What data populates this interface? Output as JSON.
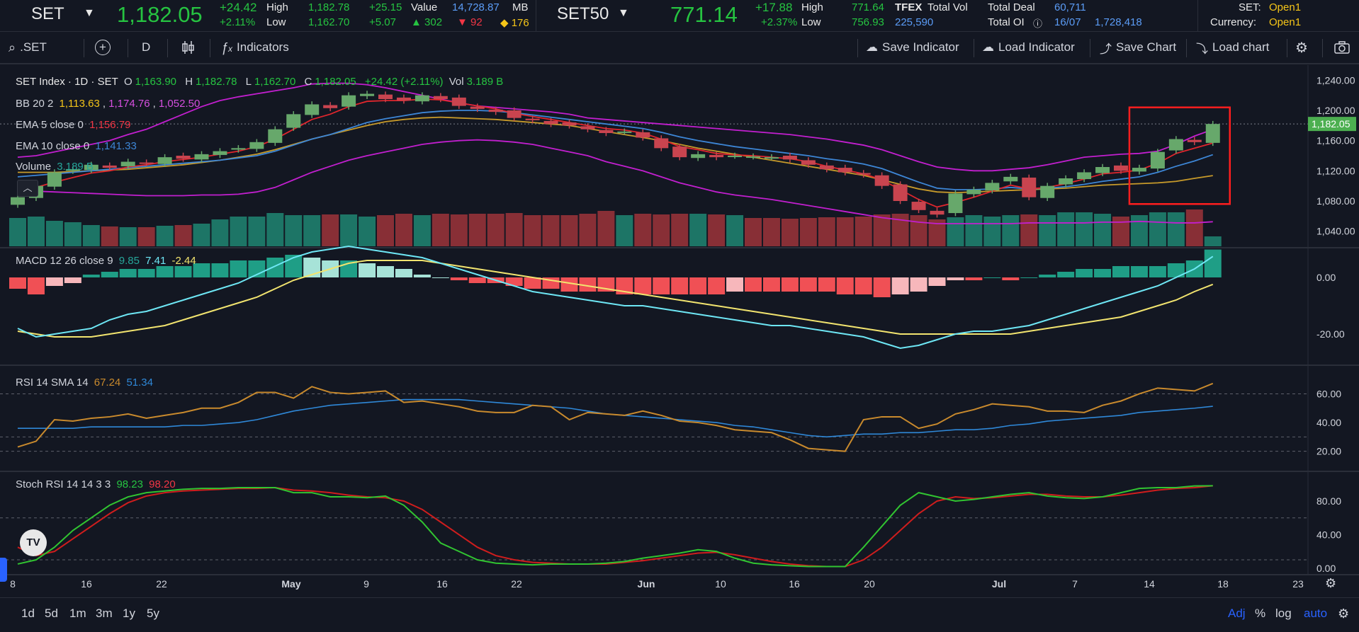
{
  "quote_bar": {
    "set": {
      "symbol": "SET",
      "price": "1,182.05",
      "change": "+24.42",
      "change_pct": "+2.11%",
      "high_label": "High",
      "high": "1,182.78",
      "low_label": "Low",
      "low": "1,162.70",
      "high_diff": "+25.15",
      "low_diff": "+5.07",
      "value_label": "Value",
      "value": "14,728.87",
      "value_unit": "MB",
      "adv": "302",
      "dec": "92",
      "unch": "176"
    },
    "set50": {
      "symbol": "SET50",
      "price": "771.14",
      "change": "+17.88",
      "change_pct": "+2.37%",
      "high_label": "High",
      "high": "771.64",
      "low_label": "Low",
      "low": "756.93",
      "tfex_label": "TFEX",
      "total_vol_label": "Total Vol",
      "total_vol": "225,590",
      "total_deal_label": "Total Deal",
      "total_deal": "60,711",
      "total_oi_label": "Total OI",
      "oi_date": "16/07",
      "total_oi": "1,728,418"
    },
    "market": {
      "set_label": "SET:",
      "set_status": "Open1",
      "currency_label": "Currency:",
      "currency_status": "Open1"
    }
  },
  "toolbar": {
    "search_value": ".SET",
    "interval": "D",
    "indicators_label": "Indicators",
    "save_indicator_label": "Save Indicator",
    "load_indicator_label": "Load Indicator",
    "save_chart_label": "Save Chart",
    "load_chart_label": "Load chart"
  },
  "legend": {
    "main": {
      "title": "SET Index · 1D · SET",
      "o_label": "O",
      "o": "1,163.90",
      "h_label": "H",
      "h": "1,182.78",
      "l_label": "L",
      "l": "1,162.70",
      "c_label": "C",
      "c": "1,182.05",
      "change": "+24.42 (+2.11%)",
      "vol_label": "Vol",
      "vol": "3.189 B"
    },
    "bb": {
      "label": "BB 20 2",
      "basis": "1,113.63",
      "upper": "1,174.76",
      "lower": "1,052.50"
    },
    "ema5": {
      "label": "EMA 5 close 0",
      "value": "1,156.79"
    },
    "ema10": {
      "label": "EMA 10 close 0",
      "value": "1,141.33"
    },
    "volume": {
      "label": "Volume",
      "value": "3.189 B"
    },
    "macd": {
      "label": "MACD 12 26 close 9",
      "hist": "9.85",
      "macd": "7.41",
      "signal": "-2.44"
    },
    "rsi": {
      "label": "RSI 14 SMA 14",
      "rsi": "67.24",
      "sma": "51.34"
    },
    "stoch": {
      "label": "Stoch RSI 14 14 3 3",
      "k": "98.23",
      "d": "98.20"
    }
  },
  "price_axis": {
    "ticks": [
      "1,240.00",
      "1,200.00",
      "1,160.00",
      "1,120.00",
      "1,080.00",
      "1,040.00"
    ],
    "last_price": "1,182.05"
  },
  "macd_axis": {
    "ticks": [
      "0.00",
      "-20.00"
    ]
  },
  "rsi_axis": {
    "ticks": [
      "60.00",
      "40.00",
      "20.00"
    ]
  },
  "stoch_axis": {
    "ticks": [
      "80.00",
      "40.00",
      "0.00"
    ]
  },
  "time_axis": {
    "ticks": [
      "8",
      "16",
      "22",
      "May",
      "9",
      "16",
      "22",
      "Jun",
      "10",
      "16",
      "20",
      "Jul",
      "7",
      "14",
      "18",
      "23"
    ]
  },
  "bottom_bar": {
    "timeframes": [
      "1d",
      "5d",
      "1m",
      "3m",
      "1y",
      "5y"
    ],
    "adj": "Adj",
    "pct": "%",
    "log": "log",
    "auto": "auto"
  },
  "colors": {
    "up": "#26a69a",
    "down": "#ef5350",
    "green": "#26c441",
    "bb": "#c21fcf",
    "ema5": "#e0262d",
    "ema10": "#3d86d6",
    "basis": "#c79a2a",
    "macd": "#6ee7f5",
    "signal": "#f2e46f",
    "rsi": "#c98a2d",
    "rsi_sma": "#2f88d8",
    "stoch_k": "#31c431",
    "stoch_d": "#cf1d1d",
    "highlight": "#ff1e1e"
  },
  "chart_data": {
    "type": "candlestick",
    "n_bars": 66,
    "price_range": [
      1020,
      1260
    ],
    "last_close": 1182.05,
    "highlight_box": {
      "from_bar": 61,
      "to_bar": 65,
      "price_low": 1076,
      "price_high": 1204
    },
    "closes": [
      1085,
      1100,
      1118,
      1122,
      1128,
      1124,
      1132,
      1130,
      1138,
      1136,
      1142,
      1146,
      1150,
      1158,
      1175,
      1195,
      1208,
      1203,
      1220,
      1222,
      1215,
      1213,
      1220,
      1215,
      1206,
      1202,
      1198,
      1190,
      1187,
      1182,
      1180,
      1175,
      1170,
      1172,
      1164,
      1150,
      1138,
      1142,
      1138,
      1140,
      1139,
      1138,
      1135,
      1128,
      1122,
      1118,
      1115,
      1100,
      1080,
      1068,
      1062,
      1090,
      1095,
      1104,
      1112,
      1085,
      1100,
      1110,
      1118,
      1125,
      1120,
      1124,
      1145,
      1162,
      1158,
      1182.05
    ],
    "ema5": [
      1092,
      1098,
      1105,
      1111,
      1117,
      1120,
      1125,
      1128,
      1132,
      1135,
      1138,
      1142,
      1146,
      1152,
      1162,
      1175,
      1188,
      1195,
      1205,
      1212,
      1213,
      1213,
      1215,
      1214,
      1210,
      1206,
      1202,
      1196,
      1192,
      1188,
      1184,
      1180,
      1176,
      1174,
      1170,
      1162,
      1152,
      1148,
      1143,
      1141,
      1140,
      1138,
      1136,
      1132,
      1126,
      1121,
      1116,
      1108,
      1095,
      1082,
      1072,
      1078,
      1085,
      1093,
      1101,
      1096,
      1098,
      1103,
      1109,
      1116,
      1118,
      1121,
      1130,
      1143,
      1150,
      1156.79
    ],
    "ema10": [
      1112,
      1114,
      1116,
      1118,
      1120,
      1122,
      1124,
      1126,
      1128,
      1130,
      1132,
      1134,
      1137,
      1140,
      1146,
      1154,
      1162,
      1168,
      1176,
      1184,
      1189,
      1193,
      1197,
      1199,
      1200,
      1200,
      1199,
      1197,
      1194,
      1191,
      1188,
      1185,
      1182,
      1179,
      1176,
      1171,
      1165,
      1160,
      1156,
      1152,
      1149,
      1146,
      1143,
      1140,
      1136,
      1133,
      1129,
      1123,
      1114,
      1105,
      1097,
      1095,
      1095,
      1096,
      1098,
      1096,
      1097,
      1099,
      1102,
      1106,
      1109,
      1112,
      1118,
      1126,
      1133,
      1141.33
    ],
    "bb_upper": [
      1138,
      1140,
      1145,
      1150,
      1155,
      1160,
      1168,
      1175,
      1185,
      1195,
      1205,
      1213,
      1218,
      1222,
      1226,
      1230,
      1235,
      1236,
      1236,
      1234,
      1230,
      1225,
      1220,
      1215,
      1210,
      1206,
      1204,
      1202,
      1200,
      1198,
      1195,
      1190,
      1188,
      1186,
      1184,
      1182,
      1180,
      1178,
      1176,
      1174,
      1172,
      1170,
      1168,
      1165,
      1162,
      1158,
      1154,
      1148,
      1140,
      1132,
      1125,
      1122,
      1120,
      1120,
      1122,
      1124,
      1128,
      1133,
      1138,
      1140,
      1142,
      1143,
      1146,
      1155,
      1166,
      1174.76
    ],
    "bb_lower": [
      1095,
      1093,
      1092,
      1091,
      1090,
      1089,
      1088,
      1087,
      1087,
      1087,
      1088,
      1088,
      1089,
      1092,
      1098,
      1108,
      1118,
      1126,
      1134,
      1140,
      1145,
      1150,
      1155,
      1158,
      1160,
      1161,
      1160,
      1158,
      1155,
      1150,
      1145,
      1140,
      1132,
      1126,
      1120,
      1112,
      1104,
      1098,
      1092,
      1088,
      1085,
      1082,
      1078,
      1074,
      1070,
      1066,
      1062,
      1058,
      1055,
      1052,
      1050,
      1050,
      1050,
      1050,
      1050,
      1051,
      1051,
      1051,
      1051,
      1052,
      1052,
      1053,
      1052,
      1051,
      1051,
      1052.5
    ],
    "bb_basis": [
      1118,
      1118,
      1118,
      1119,
      1120,
      1121,
      1122,
      1124,
      1126,
      1128,
      1131,
      1134,
      1138,
      1142,
      1148,
      1155,
      1162,
      1168,
      1174,
      1180,
      1185,
      1188,
      1190,
      1191,
      1190,
      1189,
      1188,
      1186,
      1184,
      1182,
      1180,
      1176,
      1172,
      1168,
      1164,
      1160,
      1155,
      1150,
      1146,
      1142,
      1138,
      1134,
      1130,
      1126,
      1122,
      1118,
      1114,
      1108,
      1102,
      1096,
      1092,
      1091,
      1092,
      1093,
      1094,
      1095,
      1096,
      1097,
      1099,
      1101,
      1102,
      1103,
      1104,
      1106,
      1110,
      1113.63
    ],
    "volume": [
      40,
      42,
      36,
      34,
      30,
      28,
      27,
      27,
      29,
      30,
      32,
      38,
      42,
      42,
      47,
      44,
      44,
      45,
      45,
      42,
      44,
      46,
      44,
      46,
      45,
      46,
      46,
      47,
      44,
      44,
      44,
      46,
      50,
      44,
      46,
      45,
      46,
      46,
      45,
      44,
      40,
      40,
      39,
      40,
      41,
      41,
      42,
      45,
      46,
      44,
      38,
      41,
      44,
      42,
      44,
      45,
      44,
      48,
      48,
      46,
      42,
      44,
      48,
      48,
      52,
      14
    ],
    "macd_hist": [
      -4,
      -6,
      -3,
      -2,
      1,
      2,
      3,
      3,
      4,
      4,
      5,
      5,
      6,
      6,
      7,
      8,
      7,
      6,
      6,
      5,
      4,
      3,
      1,
      0,
      -1,
      -2,
      -2,
      -3,
      -4,
      -4,
      -5,
      -5,
      -5,
      -6,
      -6,
      -6,
      -6,
      -6,
      -6,
      -5,
      -5,
      -5,
      -5,
      -5,
      -5,
      -6,
      -6,
      -7,
      -6,
      -5,
      -3,
      -1,
      -1,
      0,
      -1,
      0,
      1,
      2,
      3,
      3,
      4,
      4,
      4,
      5,
      6,
      9.85
    ],
    "macd": [
      -18,
      -21,
      -20,
      -19,
      -18,
      -15,
      -13,
      -12,
      -10,
      -8,
      -6,
      -4,
      -2,
      1,
      4,
      7,
      9,
      10,
      11,
      10,
      9,
      8,
      7,
      5,
      3,
      1,
      -1,
      -3,
      -5,
      -6,
      -7,
      -8,
      -9,
      -10,
      -10,
      -11,
      -12,
      -13,
      -14,
      -15,
      -16,
      -17,
      -17,
      -18,
      -19,
      -20,
      -21,
      -23,
      -25,
      -24,
      -22,
      -20,
      -19,
      -19,
      -18,
      -17,
      -15,
      -13,
      -11,
      -9,
      -7,
      -5,
      -3,
      0,
      3,
      7.41
    ],
    "macd_signal": [
      -19,
      -20,
      -21,
      -21,
      -21,
      -20,
      -19,
      -18,
      -17,
      -15,
      -13,
      -11,
      -9,
      -7,
      -4,
      -1,
      1,
      3,
      5,
      6,
      6,
      6,
      6,
      5,
      4,
      3,
      2,
      1,
      0,
      -1,
      -2,
      -3,
      -4,
      -5,
      -6,
      -7,
      -8,
      -9,
      -10,
      -11,
      -12,
      -13,
      -14,
      -15,
      -16,
      -17,
      -18,
      -19,
      -20,
      -20,
      -20,
      -20,
      -20,
      -20,
      -20,
      -19,
      -18,
      -17,
      -16,
      -15,
      -14,
      -12,
      -10,
      -8,
      -5,
      -2.44
    ],
    "rsi": [
      23,
      27,
      42,
      41,
      43,
      44,
      46,
      43,
      45,
      47,
      50,
      50,
      54,
      61,
      61,
      57,
      65,
      61,
      60,
      61,
      62,
      54,
      55,
      53,
      51,
      48,
      47,
      47,
      52,
      51,
      42,
      47,
      46,
      45,
      48,
      45,
      41,
      40,
      38,
      35,
      34,
      33,
      28,
      22,
      21,
      20,
      42,
      44,
      44,
      36,
      39,
      46,
      49,
      53,
      52,
      51,
      48,
      48,
      47,
      52,
      55,
      60,
      64,
      63,
      62,
      67.24
    ],
    "rsi_sma": [
      36,
      36,
      36,
      36,
      37,
      37,
      37,
      37,
      37,
      38,
      38,
      39,
      40,
      42,
      45,
      48,
      50,
      52,
      53,
      54,
      55,
      56,
      56,
      56,
      56,
      55,
      54,
      53,
      52,
      51,
      50,
      48,
      46,
      45,
      44,
      43,
      42,
      41,
      40,
      38,
      37,
      35,
      33,
      31,
      30,
      31,
      32,
      32,
      33,
      33,
      34,
      35,
      35,
      36,
      38,
      39,
      41,
      42,
      43,
      44,
      45,
      47,
      48,
      49,
      50,
      51.34
    ],
    "stoch_k": [
      5,
      10,
      25,
      45,
      60,
      75,
      85,
      90,
      92,
      94,
      95,
      95,
      96,
      96,
      96,
      90,
      90,
      85,
      85,
      84,
      86,
      75,
      55,
      30,
      20,
      10,
      6,
      5,
      4,
      5,
      5,
      5,
      6,
      8,
      12,
      15,
      18,
      22,
      20,
      12,
      6,
      4,
      3,
      2,
      2,
      2,
      25,
      50,
      75,
      90,
      85,
      80,
      82,
      85,
      88,
      90,
      86,
      84,
      83,
      85,
      90,
      95,
      96,
      96,
      98,
      98.23
    ],
    "stoch_d": [
      25,
      15,
      20,
      35,
      50,
      65,
      78,
      86,
      90,
      92,
      93,
      94,
      95,
      95,
      96,
      93,
      92,
      90,
      87,
      85,
      84,
      80,
      70,
      55,
      40,
      25,
      15,
      10,
      7,
      6,
      5,
      5,
      5,
      7,
      9,
      12,
      15,
      18,
      19,
      16,
      12,
      8,
      5,
      3,
      2,
      2,
      10,
      25,
      45,
      65,
      80,
      85,
      83,
      84,
      86,
      88,
      88,
      86,
      85,
      85,
      87,
      90,
      93,
      95,
      96,
      98.2
    ]
  }
}
